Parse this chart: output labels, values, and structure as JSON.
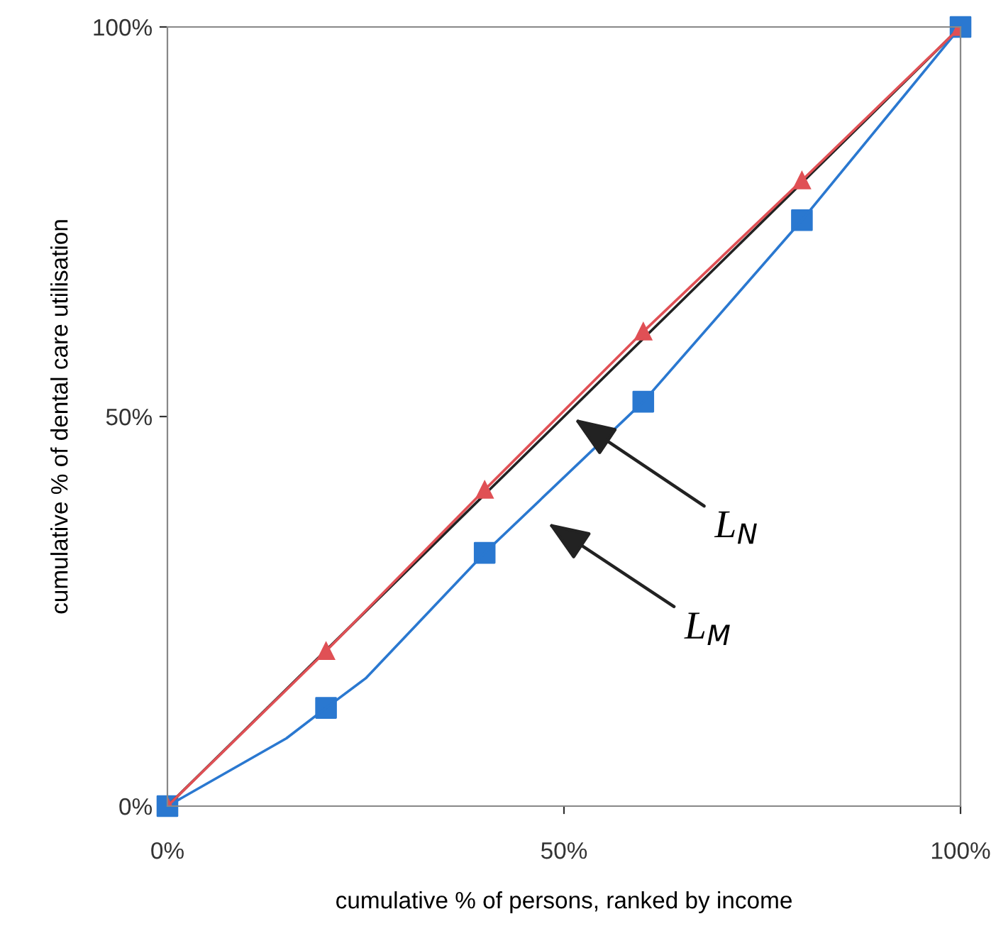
{
  "chart_data": {
    "type": "line",
    "xlabel": "cumulative % of persons, ranked by income",
    "ylabel": "cumulative % of dental care utilisation",
    "series": [
      {
        "color": "#222222",
        "x": [
          0,
          100
        ],
        "values": [
          0,
          100
        ],
        "marker": "none"
      },
      {
        "color": "#2a78d0",
        "x": [
          0,
          15,
          20,
          25,
          40,
          60,
          80,
          100
        ],
        "values": [
          0,
          8.7,
          12.6,
          16.4,
          32.5,
          51.9,
          75.2,
          100
        ],
        "marker": "none"
      },
      {
        "type": "scatter",
        "color": "#2a78d0",
        "x": [
          0,
          20,
          40,
          60,
          80,
          100
        ],
        "values": [
          0,
          12.6,
          32.5,
          51.9,
          75.2,
          100
        ],
        "marker": "square"
      },
      {
        "color": "#e05055",
        "x": [
          0,
          20,
          40,
          60,
          80,
          100
        ],
        "values": [
          0,
          19.9,
          40.6,
          60.9,
          80.3,
          100
        ],
        "marker": "triangle"
      }
    ],
    "annotations": [
      "L$_{N}$",
      "L$_{M}$"
    ],
    "xlim": [
      0,
      100
    ],
    "ylim": [
      0,
      100
    ],
    "xticks": [
      {
        "value": 0,
        "label": "0%"
      },
      {
        "value": 50,
        "label": "50%"
      },
      {
        "value": 100,
        "label": "100%"
      }
    ],
    "yticks": [
      {
        "value": 0,
        "label": "0%"
      },
      {
        "value": 50,
        "label": "50%"
      },
      {
        "value": 100,
        "label": "100%"
      }
    ],
    "grid": false,
    "legend": false
  }
}
